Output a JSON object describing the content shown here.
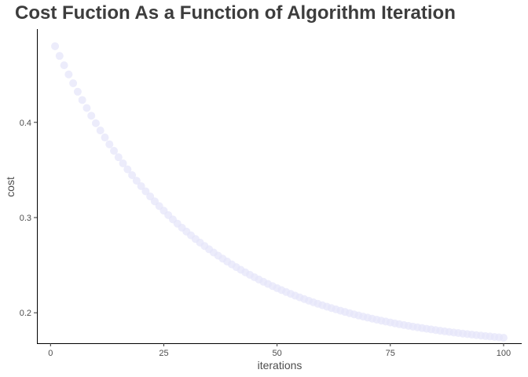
{
  "chart_data": {
    "type": "scatter",
    "title": "Cost Fuction As a Function of Algorithm Iteration",
    "xlabel": "iterations",
    "ylabel": "cost",
    "xlim": [
      -3,
      104
    ],
    "ylim": [
      0.168,
      0.498
    ],
    "x_ticks": [
      0,
      25,
      50,
      75,
      100
    ],
    "y_ticks": [
      0.2,
      0.3,
      0.4
    ],
    "y_tick_labels": [
      "0.2",
      "0.3",
      "0.4"
    ],
    "grid": false,
    "legend": "none",
    "point_color": "#e6e6fa",
    "model": {
      "form": "asymptote + amplitude * exp(-rate * (x - 1))",
      "asymptote": 0.161,
      "amplitude": 0.319,
      "rate": 0.0325
    },
    "x": [
      1,
      2,
      3,
      4,
      5,
      6,
      7,
      8,
      9,
      10,
      11,
      12,
      13,
      14,
      15,
      16,
      17,
      18,
      19,
      20,
      21,
      22,
      23,
      24,
      25,
      26,
      27,
      28,
      29,
      30,
      31,
      32,
      33,
      34,
      35,
      36,
      37,
      38,
      39,
      40,
      41,
      42,
      43,
      44,
      45,
      46,
      47,
      48,
      49,
      50,
      51,
      52,
      53,
      54,
      55,
      56,
      57,
      58,
      59,
      60,
      61,
      62,
      63,
      64,
      65,
      66,
      67,
      68,
      69,
      70,
      71,
      72,
      73,
      74,
      75,
      76,
      77,
      78,
      79,
      80,
      81,
      82,
      83,
      84,
      85,
      86,
      87,
      88,
      89,
      90,
      91,
      92,
      93,
      94,
      95,
      96,
      97,
      98,
      99,
      100
    ]
  }
}
